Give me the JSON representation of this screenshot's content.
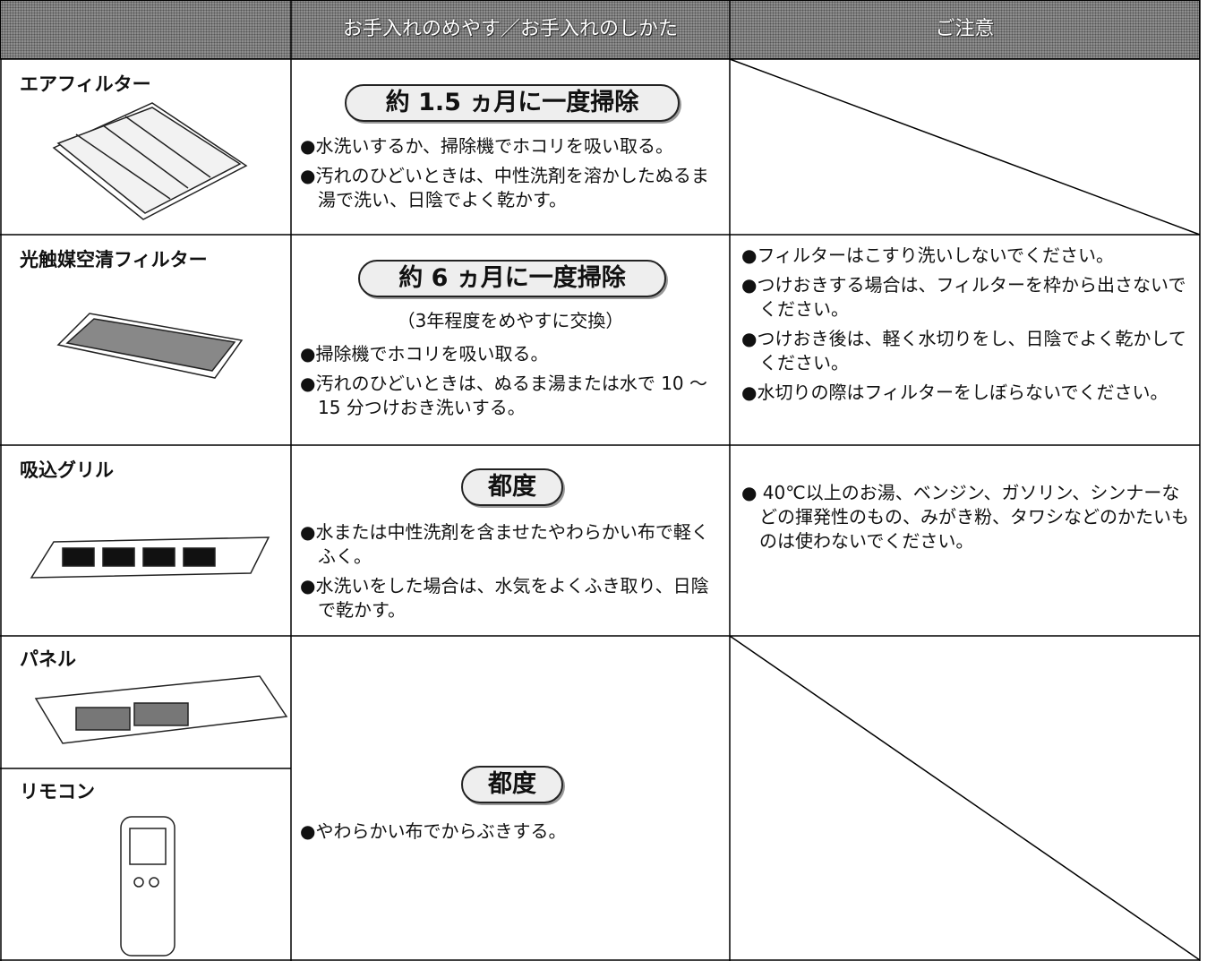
{
  "header": {
    "columns": [
      "お手入れのめやす／お手入れのしかた",
      "ご注意"
    ]
  },
  "rows": [
    {
      "items": [
        "エアフィルター"
      ],
      "frequency": "約 1.5 ヵ月に一度掃除",
      "methods": [
        "●水洗いするか、掃除機でホコリを吸い取る。",
        "●汚れのひどいときは、中性洗剤を溶かしたぬるま湯で洗い、日陰でよく乾かす。"
      ]
    },
    {
      "items": [
        "光触媒空清フィルター"
      ],
      "frequency": "約 6 ヵ月に一度掃除",
      "subnote": "（3年程度をめやすに交換）",
      "methods": [
        "●掃除機でホコリを吸い取る。",
        "●汚れのひどいときは、ぬるま湯または水で 10 ～ 15 分つけおき洗いする。"
      ],
      "cautions": [
        "●フィルターはこすり洗いしないでください。",
        "●つけおきする場合は、フィルターを枠から出さないでください。",
        "●つけおき後は、軽く水切りをし、日陰でよく乾かしてください。",
        "●水切りの際はフィルターをしぼらないでください。"
      ]
    },
    {
      "items": [
        "吸込グリル"
      ],
      "frequency": "都度",
      "methods": [
        "●水または中性洗剤を含ませたやわらかい布で軽くふく。",
        "●水洗いをした場合は、水気をよくふき取り、日陰で乾かす。"
      ],
      "cautions": [
        "● 40℃以上のお湯、ベンジン、ガソリン、シンナーなどの揮発性のもの、みがき粉、タワシなどのかたいものは使わないでください。"
      ]
    },
    {
      "items": [
        "パネル",
        "リモコン"
      ],
      "frequency": "都度",
      "methods": [
        "●やわらかい布でからぶきする。"
      ]
    }
  ]
}
